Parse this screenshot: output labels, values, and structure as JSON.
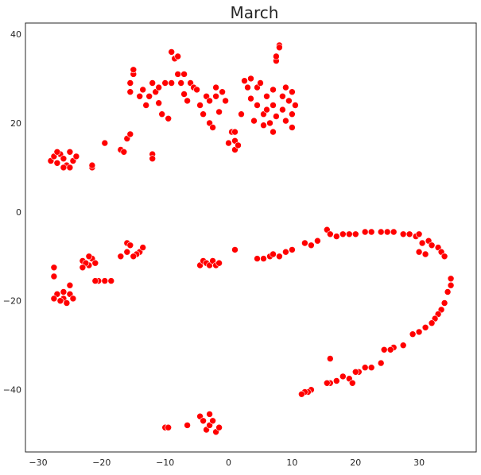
{
  "chart_data": {
    "type": "scatter",
    "title": "March",
    "xlabel": "",
    "ylabel": "",
    "xlim": [
      -32,
      39
    ],
    "ylim": [
      -54,
      42.5
    ],
    "xticks": [
      -30,
      -20,
      -10,
      0,
      10,
      20,
      30
    ],
    "yticks": [
      -40,
      -20,
      0,
      20,
      40
    ],
    "tick_labels_x": [
      "−30",
      "−20",
      "−10",
      "0",
      "10",
      "20",
      "30"
    ],
    "tick_labels_y": [
      "−40",
      "−20",
      "0",
      "20",
      "40"
    ],
    "grid": false,
    "legend": "none",
    "marker_color": "#ff0000",
    "marker_edge_color": "#ffffff",
    "series": [
      {
        "values": [
          [
            -28,
            11.5
          ],
          [
            -27.5,
            12.5
          ],
          [
            -27,
            11
          ],
          [
            -26.5,
            13
          ],
          [
            -26,
            12
          ],
          [
            -25.5,
            10.5
          ],
          [
            -25,
            13.5
          ],
          [
            -24.5,
            11.5
          ],
          [
            -24,
            12.5
          ],
          [
            -26,
            10
          ],
          [
            -27,
            13.5
          ],
          [
            -25,
            10
          ],
          [
            -23,
            -11
          ],
          [
            -22,
            -12
          ],
          [
            -21.5,
            -10.5
          ],
          [
            -22.5,
            -11.5
          ],
          [
            -23,
            -12.5
          ],
          [
            -21,
            -11.5
          ],
          [
            -22,
            -10
          ],
          [
            -20.5,
            -15.5
          ],
          [
            -19.5,
            -15.5
          ],
          [
            -18.5,
            -15.5
          ],
          [
            -21,
            -15.5
          ],
          [
            -27,
            -18.5
          ],
          [
            -26,
            -19.5
          ],
          [
            -25,
            -18.5
          ],
          [
            -26.5,
            -20
          ],
          [
            -25.5,
            -20.5
          ],
          [
            -27.5,
            -19.5
          ],
          [
            -24.5,
            -19.5
          ],
          [
            -26,
            -18
          ],
          [
            -27.5,
            -12.5
          ],
          [
            -27.5,
            -14.5
          ],
          [
            -25,
            -16.5
          ],
          [
            -21.5,
            10
          ],
          [
            -21.5,
            10.5
          ],
          [
            -19.5,
            15.5
          ],
          [
            -19.5,
            15.5
          ],
          [
            -17,
            14
          ],
          [
            -16.5,
            13.5
          ],
          [
            -16,
            16.5
          ],
          [
            -15.5,
            17.5
          ],
          [
            -12,
            13
          ],
          [
            -12,
            12
          ],
          [
            -16,
            -7
          ],
          [
            -15.5,
            -7.5
          ],
          [
            -16,
            -9
          ],
          [
            -14,
            -9
          ],
          [
            -13.5,
            -8
          ],
          [
            -14.5,
            -9.5
          ],
          [
            -15,
            -10
          ],
          [
            -17,
            -10
          ],
          [
            -15.5,
            27
          ],
          [
            -15.5,
            29
          ],
          [
            -15,
            31
          ],
          [
            -15,
            32
          ],
          [
            -14,
            26
          ],
          [
            -13.5,
            27.5
          ],
          [
            -13,
            24
          ],
          [
            -12.5,
            26
          ],
          [
            -12,
            29
          ],
          [
            -11.5,
            27
          ],
          [
            -11,
            24.5
          ],
          [
            -11,
            28
          ],
          [
            -10.5,
            22
          ],
          [
            -10,
            29
          ],
          [
            -9.5,
            21
          ],
          [
            -9,
            29
          ],
          [
            -9,
            36
          ],
          [
            -8.5,
            34.5
          ],
          [
            -8,
            35
          ],
          [
            -8,
            31
          ],
          [
            -7.5,
            29
          ],
          [
            -7,
            26.5
          ],
          [
            -7,
            31
          ],
          [
            -6.5,
            25
          ],
          [
            -6,
            29
          ],
          [
            -5.5,
            28
          ],
          [
            -5,
            27.5
          ],
          [
            -4.5,
            24
          ],
          [
            -4,
            22
          ],
          [
            -3.5,
            26
          ],
          [
            -3,
            25
          ],
          [
            -3,
            20
          ],
          [
            -2.5,
            19
          ],
          [
            -2,
            26
          ],
          [
            -2,
            28
          ],
          [
            -1.5,
            22.5
          ],
          [
            -1,
            27
          ],
          [
            -0.5,
            25
          ],
          [
            0,
            15.5
          ],
          [
            0.5,
            18
          ],
          [
            1,
            14
          ],
          [
            1,
            16
          ],
          [
            1.5,
            15
          ],
          [
            1,
            18
          ],
          [
            2,
            22
          ],
          [
            2.5,
            29.5
          ],
          [
            3,
            28
          ],
          [
            3.5,
            30
          ],
          [
            3.5,
            25.5
          ],
          [
            4,
            20.5
          ],
          [
            4.5,
            24
          ],
          [
            4.5,
            28
          ],
          [
            5,
            29
          ],
          [
            5.5,
            19.5
          ],
          [
            5.5,
            22
          ],
          [
            6,
            26
          ],
          [
            6,
            23
          ],
          [
            6.5,
            20
          ],
          [
            7,
            27.5
          ],
          [
            7,
            24
          ],
          [
            7,
            18
          ],
          [
            7.5,
            21.5
          ],
          [
            7.5,
            34
          ],
          [
            7.5,
            35
          ],
          [
            8,
            37.5
          ],
          [
            8,
            37
          ],
          [
            8.5,
            26
          ],
          [
            8.5,
            23
          ],
          [
            9,
            28
          ],
          [
            9,
            20.5
          ],
          [
            9.5,
            25
          ],
          [
            10,
            22
          ],
          [
            10,
            27
          ],
          [
            10.5,
            24
          ],
          [
            10,
            19
          ],
          [
            -10,
            -48.5
          ],
          [
            -9.5,
            -48.5
          ],
          [
            -6.5,
            -48
          ],
          [
            -4.5,
            -46
          ],
          [
            -4,
            -47
          ],
          [
            -3.5,
            -49
          ],
          [
            -3,
            -48
          ],
          [
            -3,
            -45.5
          ],
          [
            -2.5,
            -47
          ],
          [
            -2,
            -49.5
          ],
          [
            -1.5,
            -48.5
          ],
          [
            -4.5,
            -12
          ],
          [
            -4,
            -11
          ],
          [
            -3.5,
            -11.5
          ],
          [
            -3,
            -12
          ],
          [
            -2.5,
            -11
          ],
          [
            -2,
            -12
          ],
          [
            -1.5,
            -11.5
          ],
          [
            1,
            -8.5
          ],
          [
            4.5,
            -10.5
          ],
          [
            5.5,
            -10.5
          ],
          [
            6.5,
            -10
          ],
          [
            7,
            -9.5
          ],
          [
            8,
            -10
          ],
          [
            9,
            -9
          ],
          [
            10,
            -8.5
          ],
          [
            12,
            -7
          ],
          [
            13,
            -7.5
          ],
          [
            14,
            -6.5
          ],
          [
            15.5,
            -4
          ],
          [
            16,
            -5
          ],
          [
            17,
            -5.5
          ],
          [
            18,
            -5
          ],
          [
            19,
            -5
          ],
          [
            20,
            -5
          ],
          [
            21.5,
            -4.5
          ],
          [
            22.5,
            -4.5
          ],
          [
            24,
            -4.5
          ],
          [
            25,
            -4.5
          ],
          [
            26,
            -4.5
          ],
          [
            27.5,
            -5
          ],
          [
            28.5,
            -5
          ],
          [
            29.5,
            -5.5
          ],
          [
            30,
            -5
          ],
          [
            30.5,
            -7
          ],
          [
            31.5,
            -6.5
          ],
          [
            32,
            -7.5
          ],
          [
            33,
            -8
          ],
          [
            33.5,
            -9
          ],
          [
            34,
            -10
          ],
          [
            30,
            -9
          ],
          [
            31,
            -9.5
          ],
          [
            35,
            -15
          ],
          [
            35,
            -16.5
          ],
          [
            34.5,
            -18
          ],
          [
            34,
            -20.5
          ],
          [
            33.5,
            -22
          ],
          [
            33,
            -23
          ],
          [
            32.5,
            -24
          ],
          [
            32,
            -25
          ],
          [
            31,
            -26
          ],
          [
            30,
            -27
          ],
          [
            29,
            -27.5
          ],
          [
            27.5,
            -30
          ],
          [
            26,
            -30.5
          ],
          [
            25.5,
            -31
          ],
          [
            24.5,
            -31
          ],
          [
            24,
            -34
          ],
          [
            22.5,
            -35
          ],
          [
            21.5,
            -35
          ],
          [
            20.5,
            -36
          ],
          [
            20,
            -36
          ],
          [
            19,
            -37.5
          ],
          [
            18,
            -37
          ],
          [
            17,
            -38
          ],
          [
            16,
            -38.5
          ],
          [
            15.5,
            -38.5
          ],
          [
            16,
            -33
          ],
          [
            19.5,
            -38.5
          ],
          [
            13,
            -40
          ],
          [
            12.5,
            -40.5
          ],
          [
            12,
            -40.5
          ],
          [
            11.5,
            -41
          ]
        ]
      }
    ]
  }
}
